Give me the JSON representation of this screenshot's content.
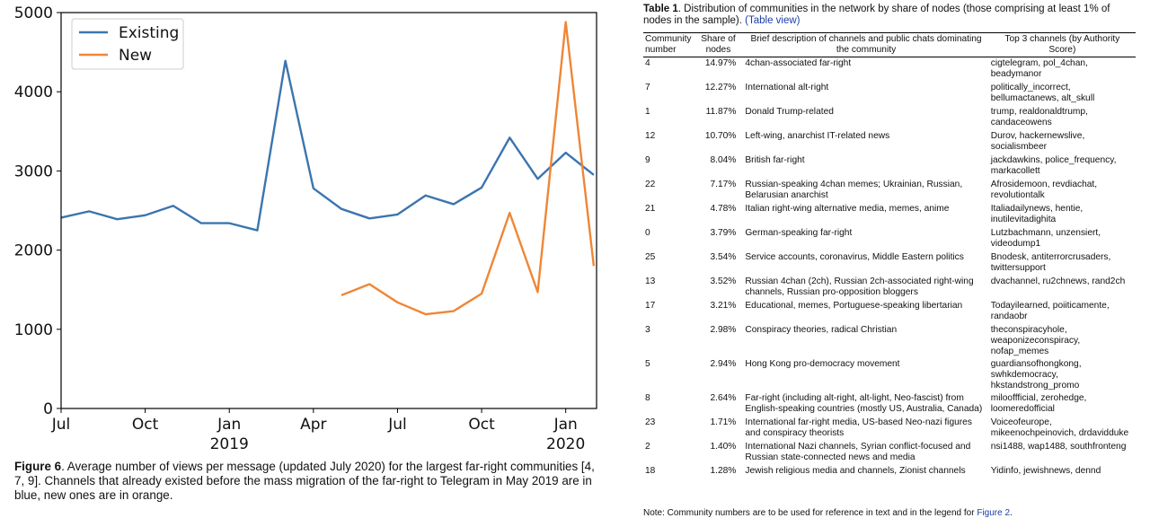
{
  "chart_data": {
    "type": "line",
    "x_labels": [
      "Jul",
      "Oct",
      "Jan\n2019",
      "Apr",
      "Jul",
      "Oct",
      "Jan\n2020"
    ],
    "ylim": [
      0,
      5000
    ],
    "y_ticks": [
      0,
      1000,
      2000,
      3000,
      4000,
      5000
    ],
    "legend_position": "top-left",
    "grid": false,
    "series": [
      {
        "name": "Existing",
        "color": "#3b75af",
        "points": [
          [
            "2018-07",
            2410
          ],
          [
            "2018-08",
            2490
          ],
          [
            "2018-09",
            2390
          ],
          [
            "2018-10",
            2440
          ],
          [
            "2018-11",
            2560
          ],
          [
            "2018-12",
            2340
          ],
          [
            "2019-01",
            2340
          ],
          [
            "2019-02",
            2250
          ],
          [
            "2019-03",
            4390
          ],
          [
            "2019-04",
            2780
          ],
          [
            "2019-05",
            2520
          ],
          [
            "2019-06",
            2400
          ],
          [
            "2019-07",
            2450
          ],
          [
            "2019-08",
            2690
          ],
          [
            "2019-09",
            2580
          ],
          [
            "2019-10",
            2790
          ],
          [
            "2019-11",
            3420
          ],
          [
            "2019-12",
            2900
          ],
          [
            "2020-01",
            3230
          ],
          [
            "2020-02",
            2950
          ]
        ]
      },
      {
        "name": "New",
        "color": "#ef8636",
        "points": [
          [
            "2019-05",
            1430
          ],
          [
            "2019-06",
            1570
          ],
          [
            "2019-07",
            1340
          ],
          [
            "2019-08",
            1190
          ],
          [
            "2019-09",
            1230
          ],
          [
            "2019-10",
            1450
          ],
          [
            "2019-11",
            2470
          ],
          [
            "2019-12",
            1470
          ],
          [
            "2020-01",
            4880
          ],
          [
            "2020-02",
            1800
          ]
        ]
      }
    ]
  },
  "figure_caption": {
    "label": "Figure 6",
    "text": ". Average number of views per message (updated July 2020) for the largest far-right communities [4, 7, 9]. Channels that already existed before the mass migration of the far-right to Telegram in May 2019 are in blue, new ones are in orange."
  },
  "table": {
    "caption_label": "Table 1",
    "caption_text": ". Distribution of communities in the network by share of nodes (those comprising at least 1% of nodes in the sample). ",
    "caption_link": "(Table view)",
    "headers": [
      "Community number",
      "Share of nodes",
      "Brief description of channels and public chats dominating the community",
      "Top 3 channels (by Authority Score)"
    ],
    "rows": [
      [
        "4",
        "14.97%",
        "4chan-associated far-right",
        "cigtelegram, pol_4chan, beadymanor"
      ],
      [
        "7",
        "12.27%",
        "International alt-right",
        "politically_incorrect, bellumactanews, alt_skull"
      ],
      [
        "1",
        "11.87%",
        "Donald Trump-related",
        "trump, realdonaldtrump, candaceowens"
      ],
      [
        "12",
        "10.70%",
        "Left-wing, anarchist IT-related news",
        "Durov, hackernewslive, socialismbeer"
      ],
      [
        "9",
        "8.04%",
        "British far-right",
        "jackdawkins, police_frequency, markacollett"
      ],
      [
        "22",
        "7.17%",
        "Russian-speaking 4chan memes; Ukrainian, Russian, Belarusian anarchist",
        "Afrosidemoon, revdiachat, revolutiontalk"
      ],
      [
        "21",
        "4.78%",
        "Italian right-wing alternative media, memes, anime",
        "Italiadailynews, hentie, inutilevitadighita"
      ],
      [
        "0",
        "3.79%",
        "German-speaking far-right",
        "Lutzbachmann, unzensiert, videodump1"
      ],
      [
        "25",
        "3.54%",
        "Service accounts, coronavirus, Middle Eastern politics",
        "Bnodesk, antiterrorcrusaders, twittersupport"
      ],
      [
        "13",
        "3.52%",
        "Russian 4chan (2ch), Russian 2ch-associated right-wing channels, Russian pro-opposition bloggers",
        "dvachannel, ru2chnews, rand2ch"
      ],
      [
        "17",
        "3.21%",
        "Educational, memes, Portuguese-speaking libertarian",
        "Todayilearned, poiiticamente, randaobr"
      ],
      [
        "3",
        "2.98%",
        "Conspiracy theories, radical Christian",
        "theconspiracyhole, weaponizeconspiracy, nofap_memes"
      ],
      [
        "5",
        "2.94%",
        "Hong Kong pro-democracy movement",
        "guardiansofhongkong, swhkdemocracy, hkstandstrong_promo"
      ],
      [
        "8",
        "2.64%",
        "Far-right (including alt-right, alt-light, Neo-fascist) from English-speaking countries (mostly US, Australia, Canada)",
        "milooffficial, zerohedge, loomeredofficial"
      ],
      [
        "23",
        "1.71%",
        "International far-right media, US-based Neo-nazi figures and conspiracy theorists",
        "Voiceofeurope, mikeenochpeinovich, drdavidduke"
      ],
      [
        "2",
        "1.40%",
        "International Nazi channels, Syrian conflict-focused and Russian state-connected news and media",
        "nsi1488, wap1488, southfronteng"
      ],
      [
        "18",
        "1.28%",
        "Jewish religious media and channels, Zionist channels",
        "Yidinfo, jewishnews, dennd"
      ]
    ],
    "note_text": "Note: Community numbers are to be used for reference in text and in the legend for ",
    "note_link": "Figure 2",
    "note_end": "."
  }
}
